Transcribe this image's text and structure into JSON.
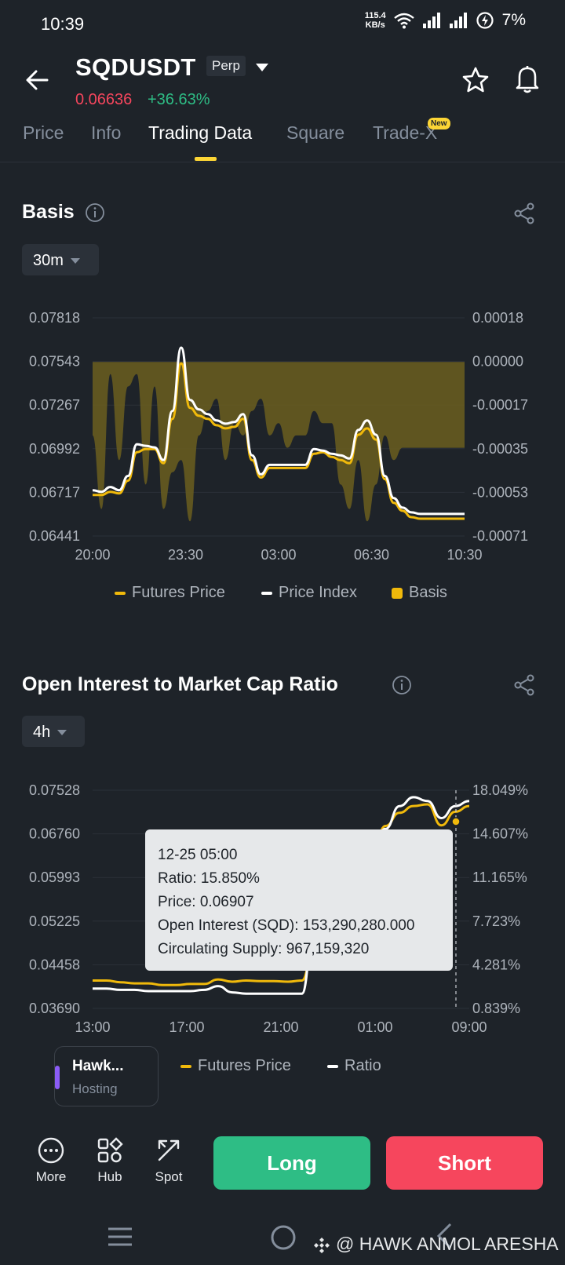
{
  "status_bar": {
    "time": "10:39",
    "speed_value": "115.4",
    "speed_unit": "KB/s",
    "battery_percent": "7%"
  },
  "header": {
    "symbol": "SQDUSDT",
    "contract_type": "Perp",
    "last_price": "0.06636",
    "change_percent": "+36.63%"
  },
  "tabs": [
    {
      "label": "Price"
    },
    {
      "label": "Info"
    },
    {
      "label": "Trading Data"
    },
    {
      "label": "Square"
    },
    {
      "label": "Trade-X"
    }
  ],
  "active_tab": "Trading Data",
  "new_badge": "New",
  "basis_section": {
    "title": "Basis",
    "interval": "30m",
    "legend": {
      "futures_price": "Futures Price",
      "price_index": "Price Index",
      "basis": "Basis"
    }
  },
  "oi_section": {
    "title": "Open Interest to Market Cap Ratio",
    "interval": "4h",
    "legend": {
      "futures_price": "Futures Price",
      "ratio": "Ratio"
    },
    "tooltip": {
      "time": "12-25 05:00",
      "ratio": "Ratio: 15.850%",
      "price": "Price: 0.06907",
      "open_interest": "Open Interest (SQD): 153,290,280.000",
      "circulating_supply": "Circulating Supply: 967,159,320"
    }
  },
  "hosting_card": {
    "title": "Hawk...",
    "subtitle": "Hosting"
  },
  "bottom_bar": {
    "more": "More",
    "hub": "Hub",
    "spot": "Spot",
    "long": "Long",
    "short": "Short"
  },
  "watermark": "@ HAWK ANMOL ARESHA",
  "colors": {
    "background": "#1e2329",
    "futures_price": "#f0b90b",
    "price_index": "#ffffff",
    "basis_fill": "#6b5e1e",
    "long": "#2ebd85",
    "short": "#f6465d",
    "accent": "#fcd535"
  },
  "chart_data": [
    {
      "type": "line",
      "title": "Basis",
      "x_ticks": [
        "20:00",
        "23:30",
        "03:00",
        "06:30",
        "10:30"
      ],
      "y_left_ticks": [
        "0.07818",
        "0.07543",
        "0.07267",
        "0.06992",
        "0.06717",
        "0.06441"
      ],
      "y_right_ticks": [
        "0.00018",
        "0.00000",
        "-0.00017",
        "-0.00035",
        "-0.00053",
        "-0.00071"
      ],
      "y_left_range": [
        0.06441,
        0.07818
      ],
      "y_right_range": [
        -0.00071,
        0.00018
      ],
      "grid": true,
      "legend_position": "bottom",
      "series": [
        {
          "name": "Futures Price",
          "axis": "left",
          "color": "#f0b90b",
          "x": [
            0,
            1,
            2,
            3,
            4,
            5,
            6,
            7,
            8,
            9,
            10,
            11,
            12,
            13,
            14,
            15,
            16,
            17,
            18,
            19,
            20,
            21,
            22,
            23,
            24,
            25,
            26,
            27,
            28,
            29,
            30,
            31,
            32,
            33,
            34,
            35,
            36,
            37,
            38,
            39,
            40,
            41,
            42
          ],
          "values": [
            0.067,
            0.067,
            0.0672,
            0.0671,
            0.0679,
            0.0697,
            0.0699,
            0.0699,
            0.069,
            0.0718,
            0.0753,
            0.0725,
            0.072,
            0.0718,
            0.0714,
            0.0712,
            0.0713,
            0.0718,
            0.0692,
            0.0681,
            0.0687,
            0.0687,
            0.0687,
            0.0687,
            0.0687,
            0.0696,
            0.0697,
            0.0694,
            0.0692,
            0.069,
            0.0708,
            0.0712,
            0.0705,
            0.068,
            0.0665,
            0.066,
            0.0656,
            0.0655,
            0.0655,
            0.0655,
            0.0655,
            0.0655,
            0.0655
          ]
        },
        {
          "name": "Price Index",
          "axis": "left",
          "color": "#ffffff",
          "x": [
            0,
            1,
            2,
            3,
            4,
            5,
            6,
            7,
            8,
            9,
            10,
            11,
            12,
            13,
            14,
            15,
            16,
            17,
            18,
            19,
            20,
            21,
            22,
            23,
            24,
            25,
            26,
            27,
            28,
            29,
            30,
            31,
            32,
            33,
            34,
            35,
            36,
            37,
            38,
            39,
            40,
            41,
            42
          ],
          "values": [
            0.0673,
            0.0672,
            0.0675,
            0.0673,
            0.0682,
            0.0702,
            0.0701,
            0.07,
            0.0692,
            0.0723,
            0.0763,
            0.073,
            0.0724,
            0.0721,
            0.0717,
            0.0715,
            0.0716,
            0.0721,
            0.0695,
            0.0683,
            0.0689,
            0.0689,
            0.0689,
            0.0689,
            0.0689,
            0.0699,
            0.0698,
            0.0696,
            0.0695,
            0.0693,
            0.0711,
            0.0717,
            0.0708,
            0.0682,
            0.0668,
            0.0662,
            0.0659,
            0.0658,
            0.0658,
            0.0658,
            0.0658,
            0.0658,
            0.0658
          ]
        },
        {
          "name": "Basis",
          "axis": "right",
          "type": "area",
          "color": "#6b5e1e",
          "x": [
            0,
            1,
            2,
            3,
            4,
            5,
            6,
            7,
            8,
            9,
            10,
            11,
            12,
            13,
            14,
            15,
            16,
            17,
            18,
            19,
            20,
            21,
            22,
            23,
            24,
            25,
            26,
            27,
            28,
            29,
            30,
            31,
            32,
            33,
            34,
            35,
            36,
            37,
            38,
            39,
            40,
            41,
            42
          ],
          "values": [
            -0.0003,
            -0.0006,
            -5e-05,
            -0.0004,
            -0.0001,
            -5e-05,
            -0.0005,
            -0.0001,
            -0.0006,
            -0.00045,
            -0.0004,
            -0.00065,
            -0.0003,
            -0.0002,
            -0.00015,
            -0.0004,
            -0.00025,
            -0.0003,
            -0.0002,
            -0.00015,
            -0.0003,
            -0.00025,
            -0.00035,
            -0.0003,
            -0.0003,
            -0.0002,
            -0.00025,
            -0.00025,
            -0.0005,
            -0.0006,
            -0.0004,
            -0.00065,
            -0.0005,
            -0.0003,
            -0.0004,
            -0.00035,
            -0.00035,
            -0.00035,
            -0.00035,
            -0.00035,
            -0.00035,
            -0.00035,
            -0.00035
          ]
        }
      ]
    },
    {
      "type": "line",
      "title": "Open Interest to Market Cap Ratio",
      "x_ticks": [
        "13:00",
        "17:00",
        "21:00",
        "01:00",
        "09:00"
      ],
      "y_left_ticks": [
        "0.07528",
        "0.06760",
        "0.05993",
        "0.05225",
        "0.04458",
        "0.03690"
      ],
      "y_right_ticks": [
        "18.049%",
        "14.607%",
        "11.165%",
        "7.723%",
        "4.281%",
        "0.839%"
      ],
      "y_left_range": [
        0.0369,
        0.07528
      ],
      "y_right_range": [
        0.839,
        18.049
      ],
      "grid": true,
      "legend_position": "bottom",
      "series": [
        {
          "name": "Futures Price",
          "axis": "left",
          "color": "#f0b90b",
          "x": [
            0,
            1,
            2,
            3,
            4,
            5,
            6,
            7,
            8,
            9,
            10,
            11,
            12,
            13,
            14,
            15,
            16,
            17,
            18,
            19,
            20,
            21,
            22,
            23,
            24,
            25,
            26,
            27
          ],
          "values": [
            0.0418,
            0.0418,
            0.0415,
            0.0413,
            0.0413,
            0.041,
            0.041,
            0.0412,
            0.0412,
            0.042,
            0.0416,
            0.0418,
            0.0417,
            0.0417,
            0.0416,
            0.0418,
            0.05,
            0.051,
            0.055,
            0.059,
            0.064,
            0.069,
            0.0713,
            0.0725,
            0.0728,
            0.0691,
            0.0715,
            0.0725
          ]
        },
        {
          "name": "Ratio",
          "axis": "right",
          "color": "#ffffff",
          "x": [
            0,
            1,
            2,
            3,
            4,
            5,
            6,
            7,
            8,
            9,
            10,
            11,
            12,
            13,
            14,
            15,
            16,
            17,
            18,
            19,
            20,
            21,
            22,
            23,
            24,
            25,
            26,
            27
          ],
          "values": [
            2.4,
            2.4,
            2.3,
            2.3,
            2.2,
            2.2,
            2.2,
            2.2,
            2.3,
            2.6,
            2.1,
            2.0,
            2.0,
            2.0,
            2.0,
            2.0,
            9.0,
            7.5,
            9.5,
            10.5,
            13.5,
            15.0,
            16.8,
            17.5,
            17.2,
            15.85,
            16.8,
            17.2
          ]
        }
      ]
    }
  ]
}
